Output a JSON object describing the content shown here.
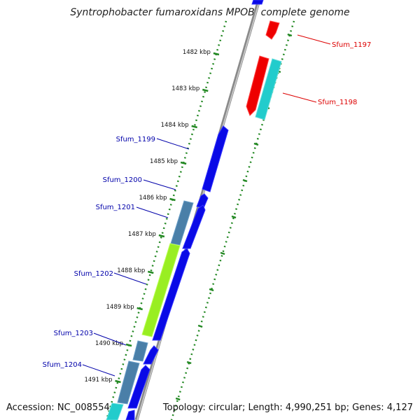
{
  "title": "Syntrophobacter fumaroxidans MPOB, complete genome",
  "footer": {
    "accession": "Accession: NC_008554",
    "summary": "Topology: circular; Length: 4,990,251 bp; Genes: 4,127"
  },
  "ruler_ticks": [
    "1482 kbp",
    "1483 kbp",
    "1484 kbp",
    "1485 kbp",
    "1486 kbp",
    "1487 kbp",
    "1488 kbp",
    "1489 kbp",
    "1490 kbp",
    "1491 kbp"
  ],
  "gene_labels": [
    {
      "name": "Sfum_1197",
      "color": "#dd0000"
    },
    {
      "name": "Sfum_1198",
      "color": "#dd0000"
    },
    {
      "name": "Sfum_1199",
      "color": "#0000aa"
    },
    {
      "name": "Sfum_1200",
      "color": "#0000aa"
    },
    {
      "name": "Sfum_1201",
      "color": "#0000aa"
    },
    {
      "name": "Sfum_1202",
      "color": "#0000aa"
    },
    {
      "name": "Sfum_1203",
      "color": "#0000aa"
    },
    {
      "name": "Sfum_1204",
      "color": "#0000aa"
    }
  ],
  "colors": {
    "forward_gene": "#0a0ae6",
    "reverse_gene_red": "#ee0000",
    "reverse_gene_cyan": "#22cccc",
    "steelblue_gene": "#4a7fa8",
    "green_gene": "#99ee22",
    "ruler_dots": "#228822",
    "backbone": "#888888"
  }
}
